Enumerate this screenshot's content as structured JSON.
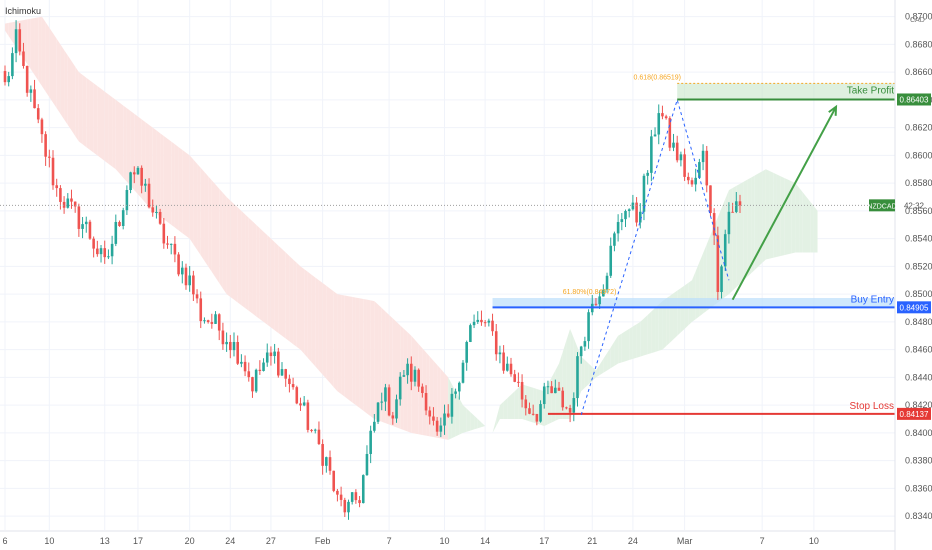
{
  "indicator": "Ichimoku",
  "currency": "CAD",
  "chart_data": {
    "type": "candlestick",
    "symbol": "NZDCAD",
    "countdown": "42:32",
    "current_price": 0.8564,
    "ylim": [
      0.833,
      0.8712
    ],
    "y_ticks": [
      0.834,
      0.836,
      0.838,
      0.84,
      0.842,
      0.844,
      0.846,
      0.848,
      0.85,
      0.852,
      0.854,
      0.856,
      0.858,
      0.86,
      0.862,
      0.864,
      0.866,
      0.868,
      0.87
    ],
    "y_tick_labels": [
      "0.83400",
      "0.83600",
      "0.83800",
      "0.84000",
      "0.84200",
      "0.84400",
      "0.84600",
      "0.84800",
      "0.85000",
      "0.85200",
      "0.85400",
      "0.85600",
      "0.85800",
      "0.86000",
      "0.86200",
      "0.86400",
      "0.86600",
      "0.86800",
      "0.87000"
    ],
    "x_tick_labels": [
      "6",
      "10",
      "13",
      "17",
      "20",
      "24",
      "27",
      "Feb",
      "7",
      "10",
      "14",
      "17",
      "21",
      "24",
      "Mar",
      "7",
      "10"
    ],
    "levels": {
      "take_profit": {
        "label": "Take Profit",
        "price": 0.86403,
        "price_label": "0.86403",
        "color": "#388e3c"
      },
      "buy_entry": {
        "label": "Buy Entry",
        "price": 0.84905,
        "price_label": "0.84905",
        "color": "#2962ff"
      },
      "stop_loss": {
        "label": "Stop Loss",
        "price": 0.84137,
        "price_label": "0.84137",
        "color": "#e53935"
      }
    },
    "fib_labels": [
      {
        "text": "0.618(0.86519)",
        "price": 0.86519,
        "color": "#f5a623"
      },
      {
        "text": "61.80%(0.84972)",
        "price": 0.84972,
        "color": "#f5a623"
      }
    ],
    "path": [
      [
        0,
        0.865
      ],
      [
        3,
        0.8682
      ],
      [
        9,
        0.862
      ],
      [
        14,
        0.8575
      ],
      [
        18,
        0.856
      ],
      [
        22,
        0.8548
      ],
      [
        27,
        0.852
      ],
      [
        31,
        0.8555
      ],
      [
        34,
        0.859
      ],
      [
        38,
        0.8575
      ],
      [
        42,
        0.8545
      ],
      [
        46,
        0.8525
      ],
      [
        50,
        0.851
      ],
      [
        53,
        0.8485
      ],
      [
        56,
        0.848
      ],
      [
        60,
        0.847
      ],
      [
        64,
        0.8455
      ],
      [
        67,
        0.8435
      ],
      [
        70,
        0.845
      ],
      [
        73,
        0.8455
      ],
      [
        77,
        0.8435
      ],
      [
        80,
        0.842
      ],
      [
        84,
        0.8395
      ],
      [
        87,
        0.838
      ],
      [
        90,
        0.835
      ],
      [
        93,
        0.8345
      ],
      [
        96,
        0.8355
      ],
      [
        99,
        0.8395
      ],
      [
        102,
        0.843
      ],
      [
        105,
        0.8415
      ],
      [
        108,
        0.8445
      ],
      [
        111,
        0.844
      ],
      [
        114,
        0.8425
      ],
      [
        117,
        0.8395
      ],
      [
        120,
        0.841
      ],
      [
        123,
        0.8445
      ],
      [
        126,
        0.8475
      ],
      [
        129,
        0.848
      ],
      [
        132,
        0.847
      ],
      [
        135,
        0.845
      ],
      [
        138,
        0.844
      ],
      [
        141,
        0.842
      ],
      [
        144,
        0.8415
      ],
      [
        147,
        0.843
      ],
      [
        150,
        0.8425
      ],
      [
        153,
        0.8415
      ],
      [
        156,
        0.8465
      ],
      [
        159,
        0.8495
      ],
      [
        162,
        0.851
      ],
      [
        165,
        0.854
      ],
      [
        168,
        0.8565
      ],
      [
        171,
        0.8555
      ],
      [
        174,
        0.859
      ],
      [
        177,
        0.8635
      ],
      [
        180,
        0.861
      ],
      [
        183,
        0.8595
      ],
      [
        186,
        0.8575
      ],
      [
        189,
        0.86
      ],
      [
        191,
        0.8565
      ],
      [
        193,
        0.851
      ],
      [
        196,
        0.856
      ],
      [
        199,
        0.8565
      ]
    ],
    "n_candles": 200,
    "cloud_top": [
      [
        0,
        0.8695
      ],
      [
        10,
        0.87
      ],
      [
        20,
        0.866
      ],
      [
        30,
        0.864
      ],
      [
        40,
        0.862
      ],
      [
        50,
        0.86
      ],
      [
        60,
        0.857
      ],
      [
        70,
        0.8545
      ],
      [
        80,
        0.852
      ],
      [
        90,
        0.85
      ],
      [
        100,
        0.8495
      ],
      [
        110,
        0.847
      ],
      [
        120,
        0.844
      ],
      [
        124,
        0.842
      ],
      [
        130,
        0.8405
      ],
      [
        132,
        0.84
      ],
      [
        134,
        0.842
      ],
      [
        140,
        0.8435
      ],
      [
        146,
        0.843
      ],
      [
        150,
        0.845
      ],
      [
        153,
        0.8475
      ],
      [
        156,
        0.8455
      ],
      [
        160,
        0.8445
      ],
      [
        166,
        0.847
      ],
      [
        172,
        0.848
      ],
      [
        178,
        0.8495
      ],
      [
        186,
        0.851
      ],
      [
        196,
        0.8575
      ],
      [
        206,
        0.859
      ],
      [
        214,
        0.858
      ],
      [
        220,
        0.856
      ]
    ],
    "cloud_bottom": [
      [
        0,
        0.869
      ],
      [
        10,
        0.865
      ],
      [
        20,
        0.861
      ],
      [
        30,
        0.859
      ],
      [
        40,
        0.856
      ],
      [
        50,
        0.854
      ],
      [
        60,
        0.85
      ],
      [
        70,
        0.848
      ],
      [
        80,
        0.846
      ],
      [
        90,
        0.843
      ],
      [
        100,
        0.841
      ],
      [
        110,
        0.84
      ],
      [
        120,
        0.8395
      ],
      [
        124,
        0.84
      ],
      [
        130,
        0.8405
      ],
      [
        132,
        0.84
      ],
      [
        134,
        0.841
      ],
      [
        140,
        0.841
      ],
      [
        146,
        0.8405
      ],
      [
        150,
        0.841
      ],
      [
        153,
        0.841
      ],
      [
        156,
        0.843
      ],
      [
        160,
        0.844
      ],
      [
        166,
        0.845
      ],
      [
        172,
        0.8455
      ],
      [
        178,
        0.846
      ],
      [
        186,
        0.848
      ],
      [
        196,
        0.85
      ],
      [
        206,
        0.8525
      ],
      [
        214,
        0.853
      ],
      [
        220,
        0.853
      ]
    ],
    "projection_arrow": {
      "from": [
        197,
        0.8496
      ],
      "to": [
        225,
        0.8635
      ]
    },
    "colors": {
      "up": "#26a69a",
      "down": "#ef5350",
      "cloud_bear": "#fbe4e2",
      "cloud_bull": "#e3f1e4",
      "grid": "#f0f3fa",
      "arrow": "#43a047"
    }
  }
}
